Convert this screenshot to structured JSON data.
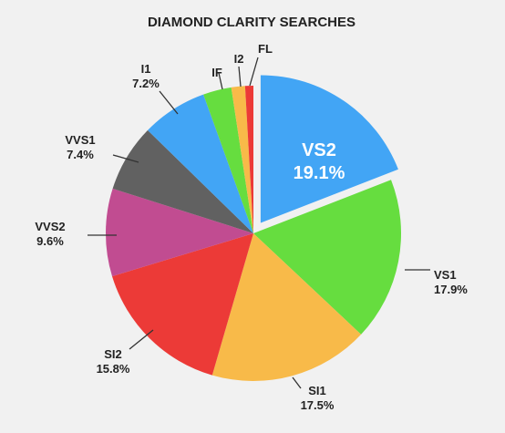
{
  "chart_data": {
    "type": "pie",
    "title": "DIAMOND CLARITY SEARCHES",
    "start_category": "VS2",
    "exploded_category": "VS2",
    "direction": "clockwise",
    "slices": [
      {
        "category": "VS2",
        "value": 19.1,
        "label": "19.1%",
        "color": "#42a5f5"
      },
      {
        "category": "VS1",
        "value": 17.9,
        "label": "17.9%",
        "color": "#66dd3f"
      },
      {
        "category": "SI1",
        "value": 17.5,
        "label": "17.5%",
        "color": "#f8ba49"
      },
      {
        "category": "SI2",
        "value": 15.8,
        "label": "15.8%",
        "color": "#ec3a37"
      },
      {
        "category": "VVS2",
        "value": 9.6,
        "label": "9.6%",
        "color": "#c14c91"
      },
      {
        "category": "VVS1",
        "value": 7.4,
        "label": "7.4%",
        "color": "#616161"
      },
      {
        "category": "I1",
        "value": 7.2,
        "label": "7.2%",
        "color": "#42a5f5"
      },
      {
        "category": "IF",
        "value": 3.1,
        "label": "",
        "color": "#66dd3f"
      },
      {
        "category": "I2",
        "value": 1.5,
        "label": "",
        "color": "#f8ba49"
      },
      {
        "category": "FL",
        "value": 0.9,
        "label": "",
        "color": "#ec3a37"
      }
    ]
  }
}
